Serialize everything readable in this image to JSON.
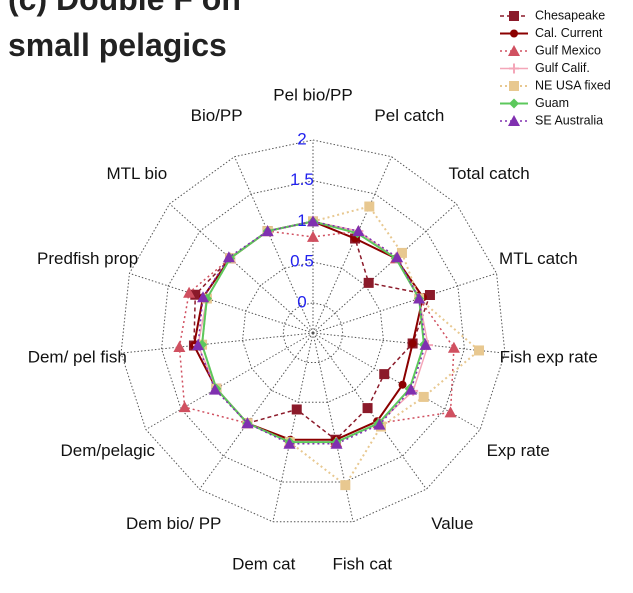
{
  "chart_data": {
    "type": "radar",
    "title": "(c) Double F on small pelagics",
    "categories": [
      "Pel bio/PP",
      "Pel catch",
      "Total catch",
      "MTL catch",
      "Fish exp rate",
      "Exp rate",
      "Value",
      "Fish cat",
      "Dem cat",
      "Dem bio/ PP",
      "Dem/pelagic",
      "Dem/ pel fish",
      "Predfish prop",
      "MTL bio",
      "Bio/PP"
    ],
    "rlim": [
      -0.37,
      2
    ],
    "rticks": [
      0,
      0.5,
      1,
      1.5,
      2
    ],
    "series": [
      {
        "name": "Chesapeake",
        "color": "#8b1a2a",
        "values": [
          1.0,
          0.9,
          0.55,
          1.14,
          0.86,
          0.64,
          0.77,
          0.97,
          0.59,
          1.0,
          1.0,
          1.1,
          1.15,
          1.0,
          1.0
        ]
      },
      {
        "name": "Cal. Current",
        "color": "#8b0000",
        "values": [
          1.0,
          0.9,
          1.0,
          1.05,
          0.86,
          0.9,
          0.97,
          0.97,
          0.97,
          1.0,
          1.0,
          1.1,
          1.05,
          1.0,
          1.0
        ]
      },
      {
        "name": "Gulf Mexico",
        "color": "#d05060",
        "values": [
          0.81,
          1.0,
          1.0,
          1.0,
          1.37,
          1.58,
          1.0,
          1.0,
          1.0,
          1.0,
          1.45,
          1.28,
          1.23,
          1.0,
          1.0
        ]
      },
      {
        "name": "Gulf Calif.",
        "color": "#f4a6b8",
        "values": [
          1.0,
          1.0,
          1.0,
          1.0,
          1.05,
          1.05,
          1.0,
          1.0,
          1.0,
          1.0,
          1.0,
          1.05,
          1.0,
          1.0,
          1.0
        ]
      },
      {
        "name": "NE USA fixed",
        "color": "#e8c890",
        "values": [
          1.0,
          1.33,
          1.1,
          1.0,
          1.68,
          1.2,
          1.05,
          1.54,
          1.0,
          1.0,
          1.0,
          1.0,
          1.0,
          1.0,
          1.0
        ]
      },
      {
        "name": "Guam",
        "color": "#5cc85c",
        "values": [
          1.0,
          0.97,
          1.0,
          1.0,
          1.0,
          1.0,
          1.0,
          1.0,
          1.0,
          1.0,
          1.0,
          1.0,
          1.0,
          1.0,
          1.0
        ]
      },
      {
        "name": "SE Australia",
        "color": "#8030b0",
        "values": [
          1.0,
          1.0,
          1.02,
          1.0,
          1.02,
          1.02,
          1.02,
          1.02,
          1.02,
          1.0,
          1.02,
          1.05,
          1.05,
          1.02,
          1.0
        ]
      }
    ]
  }
}
